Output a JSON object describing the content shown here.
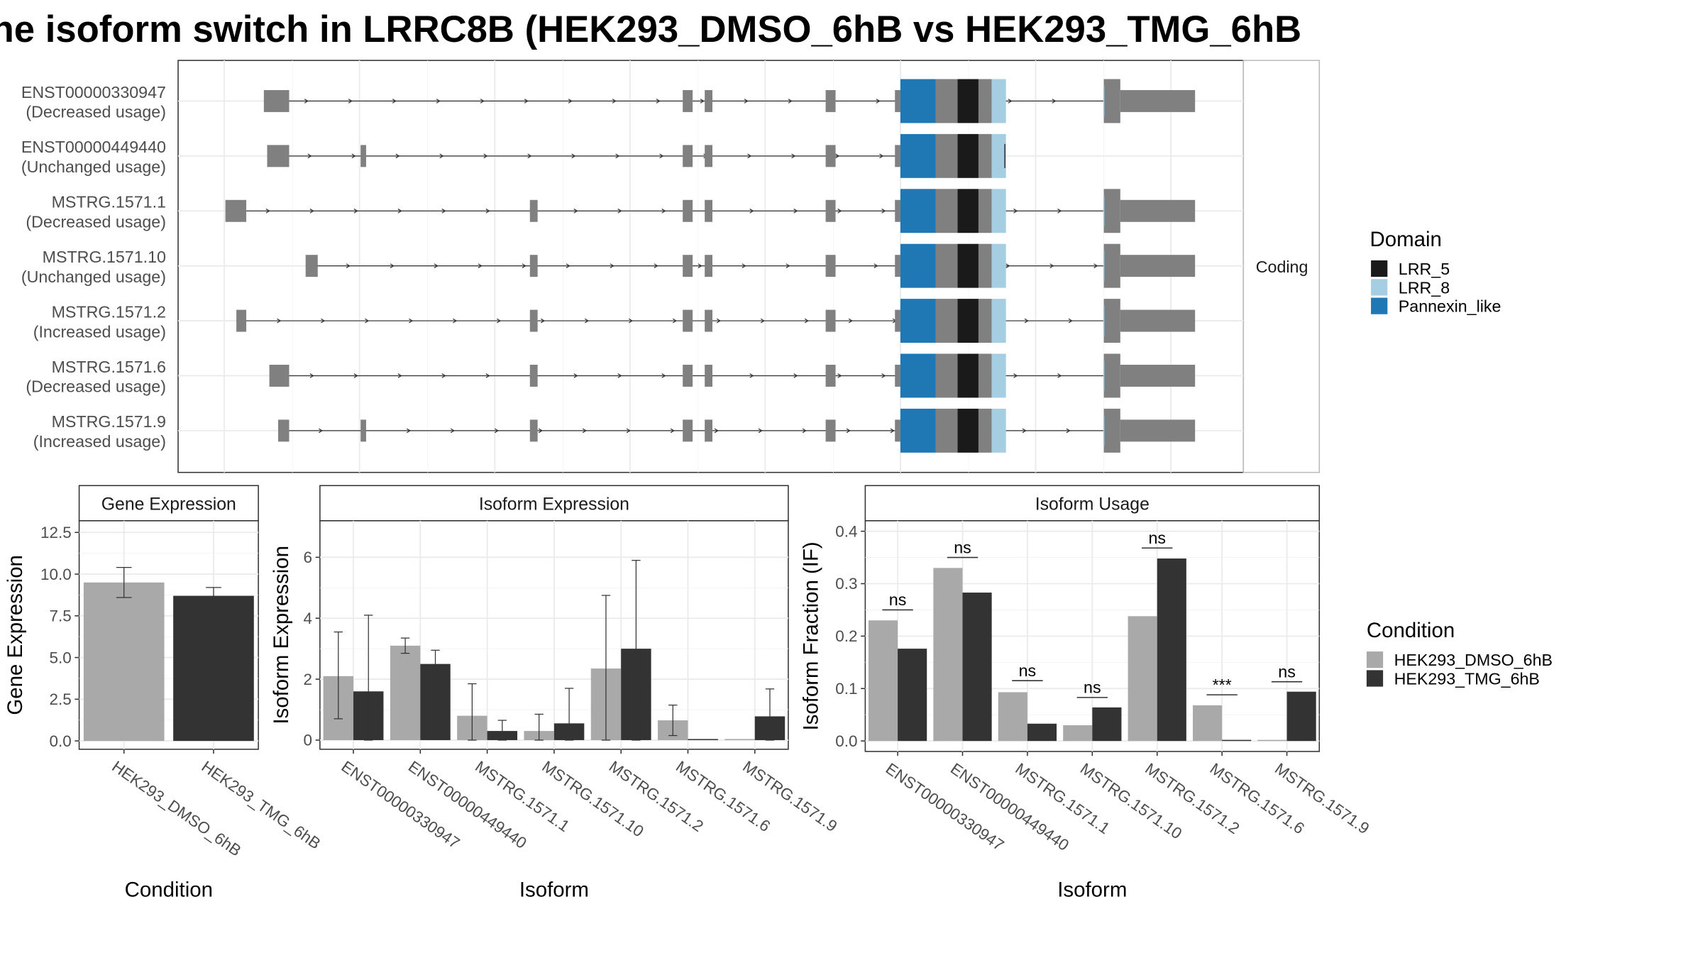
{
  "title": "he isoform switch in LRRC8B (HEK293_DMSO_6hB vs HEK293_TMG_6hB",
  "colors": {
    "exon": "#808080",
    "LRR_5": "#1a1a1a",
    "LRR_8": "#a6cee3",
    "Pannexin_like": "#1f78b4",
    "condition1": "#a9a9a9",
    "condition2": "#333333"
  },
  "structure": {
    "strip_label": "Coding",
    "isoforms": [
      {
        "id": "ENST00000330947",
        "usage": "(Decreased usage)",
        "first_exon": [
          240,
          263
        ],
        "extra_exon": null,
        "terminal": true
      },
      {
        "id": "ENST00000449440",
        "usage": "(Unchanged usage)",
        "first_exon": [
          243,
          263
        ],
        "extra_exon": [
          328,
          333
        ],
        "terminal": false
      },
      {
        "id": "MSTRG.1571.1",
        "usage": "(Decreased usage)",
        "first_exon": [
          205,
          224
        ],
        "extra_exon": [
          482,
          489
        ],
        "terminal": true
      },
      {
        "id": "MSTRG.1571.10",
        "usage": "(Unchanged usage)",
        "first_exon": [
          278,
          289
        ],
        "extra_exon": [
          482,
          489
        ],
        "terminal": true
      },
      {
        "id": "MSTRG.1571.2",
        "usage": "(Increased usage)",
        "first_exon": [
          215,
          224
        ],
        "extra_exon": [
          482,
          489
        ],
        "terminal": true
      },
      {
        "id": "MSTRG.1571.6",
        "usage": "(Decreased usage)",
        "first_exon": [
          245,
          263
        ],
        "extra_exon": [
          482,
          489
        ],
        "terminal": true
      },
      {
        "id": "MSTRG.1571.9",
        "usage": "(Increased usage)",
        "first_exon": [
          253,
          263
        ],
        "extra_exon": [
          328,
          333
        ],
        "extra_exon2": [
          482,
          489
        ],
        "terminal": true
      }
    ]
  },
  "domain_legend": {
    "title": "Domain",
    "items": [
      {
        "name": "LRR_5",
        "color": "#1a1a1a"
      },
      {
        "name": "LRR_8",
        "color": "#a6cee3"
      },
      {
        "name": "Pannexin_like",
        "color": "#1f78b4"
      }
    ]
  },
  "condition_legend": {
    "title": "Condition",
    "items": [
      {
        "name": "HEK293_DMSO_6hB",
        "color": "#a9a9a9"
      },
      {
        "name": "HEK293_TMG_6hB",
        "color": "#333333"
      }
    ]
  },
  "chart_data": [
    {
      "type": "bar",
      "title": "Gene Expression",
      "xlabel": "Condition",
      "ylabel": "Gene Expression",
      "ylim": [
        -0.5,
        13.2
      ],
      "yticks": [
        "0.0",
        "2.5",
        "5.0",
        "7.5",
        "10.0",
        "12.5"
      ],
      "ytick_values": [
        0,
        2.5,
        5,
        7.5,
        10,
        12.5
      ],
      "categories": [
        "HEK293_DMSO_6hB",
        "HEK293_TMG_6hB"
      ],
      "values": [
        9.5,
        8.7
      ],
      "errors": [
        [
          8.6,
          10.4
        ],
        [
          8.2,
          9.2
        ]
      ]
    },
    {
      "type": "bar",
      "title": "Isoform Expression",
      "xlabel": "Isoform",
      "ylabel": "Isoform Expression",
      "ylim": [
        -0.3,
        7.2
      ],
      "yticks": [
        "0",
        "2",
        "4",
        "6"
      ],
      "ytick_values": [
        0,
        2,
        4,
        6
      ],
      "categories": [
        "ENST00000330947",
        "ENST00000449440",
        "MSTRG.1571.1",
        "MSTRG.1571.10",
        "MSTRG.1571.2",
        "MSTRG.1571.6",
        "MSTRG.1571.9"
      ],
      "series": [
        {
          "name": "HEK293_DMSO_6hB",
          "values": [
            2.1,
            3.1,
            0.8,
            0.3,
            2.35,
            0.65,
            0.0
          ],
          "errors": [
            [
              0.7,
              3.55
            ],
            [
              2.85,
              3.35
            ],
            [
              0.0,
              1.85
            ],
            [
              0.0,
              0.85
            ],
            [
              0.0,
              4.75
            ],
            [
              0.15,
              1.15
            ],
            null
          ]
        },
        {
          "name": "HEK293_TMG_6hB",
          "values": [
            1.6,
            2.5,
            0.3,
            0.55,
            3.0,
            0.0,
            0.78
          ],
          "errors": [
            [
              0.0,
              4.1
            ],
            [
              2.0,
              2.95
            ],
            [
              0.0,
              0.65
            ],
            [
              0.0,
              1.7
            ],
            [
              0.0,
              5.9
            ],
            null,
            [
              0.0,
              1.68
            ]
          ]
        }
      ]
    },
    {
      "type": "bar",
      "title": "Isoform Usage",
      "xlabel": "Isoform",
      "ylabel": "Isoform Fraction (IF)",
      "ylim": [
        -0.02,
        0.42
      ],
      "yticks": [
        "0.0",
        "0.1",
        "0.2",
        "0.3",
        "0.4"
      ],
      "ytick_values": [
        0,
        0.1,
        0.2,
        0.3,
        0.4
      ],
      "categories": [
        "ENST00000330947",
        "ENST00000449440",
        "MSTRG.1571.1",
        "MSTRG.1571.10",
        "MSTRG.1571.2",
        "MSTRG.1571.6",
        "MSTRG.1571.9"
      ],
      "series": [
        {
          "name": "HEK293_DMSO_6hB",
          "values": [
            0.23,
            0.33,
            0.093,
            0.03,
            0.238,
            0.068,
            0.0
          ]
        },
        {
          "name": "HEK293_TMG_6hB",
          "values": [
            0.176,
            0.283,
            0.033,
            0.064,
            0.348,
            0.0,
            0.094
          ]
        }
      ],
      "annotations": [
        "ns",
        "ns",
        "ns",
        "ns",
        "ns",
        "***",
        "ns"
      ],
      "annotation_levels": [
        0.25,
        0.35,
        0.115,
        0.083,
        0.368,
        0.088,
        0.113
      ]
    }
  ]
}
